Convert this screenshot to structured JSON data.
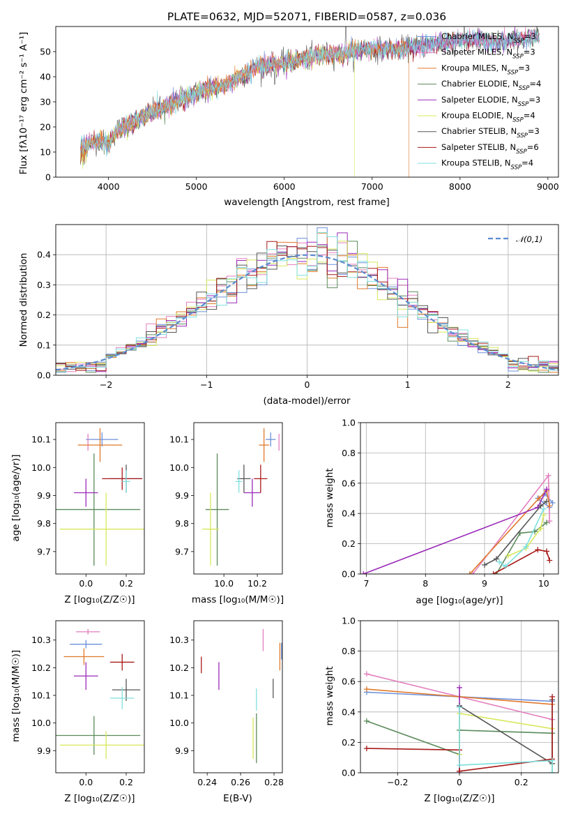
{
  "figure": {
    "title": "PLATE=0632, MJD=52071, FIBERID=0587, z=0.036"
  },
  "legend_entries": [
    {
      "name": "Chabrier MILES",
      "nssp": "3",
      "color": "#6b8fd9"
    },
    {
      "name": "Salpeter MILES",
      "nssp": "3",
      "color": "#e37fbf"
    },
    {
      "name": "Kroupa MILES",
      "nssp": "3",
      "color": "#e0792a"
    },
    {
      "name": "Chabrier ELODIE",
      "nssp": "4",
      "color": "#5a8a5a"
    },
    {
      "name": "Salpeter ELODIE",
      "nssp": "3",
      "color": "#9a2ab8"
    },
    {
      "name": "Kroupa ELODIE",
      "nssp": "4",
      "color": "#d7e85a"
    },
    {
      "name": "Chabrier STELIB",
      "nssp": "3",
      "color": "#555555"
    },
    {
      "name": "Salpeter STELIB",
      "nssp": "6",
      "color": "#a81818"
    },
    {
      "name": "Kroupa STELIB",
      "nssp": "4",
      "color": "#7fe0de"
    }
  ],
  "chart_data": [
    {
      "id": "spectrum",
      "type": "line",
      "title": "PLATE=0632, MJD=52071, FIBERID=0587, z=0.036",
      "xlabel": "wavelength [Angstrom, rest frame]",
      "ylabel": "Flux [fλ10⁻¹⁷ erg cm⁻² s⁻¹ A⁻¹]",
      "xlim": [
        3400,
        9120
      ],
      "ylim": [
        0,
        60
      ],
      "xticks": [
        4000,
        5000,
        6000,
        7000,
        8000,
        9000
      ],
      "yticks": [
        0,
        10,
        20,
        30,
        40,
        50
      ],
      "continuum": [
        [
          3680,
          12
        ],
        [
          3900,
          15
        ],
        [
          4000,
          13
        ],
        [
          4100,
          19
        ],
        [
          4300,
          22
        ],
        [
          4500,
          26
        ],
        [
          4700,
          29
        ],
        [
          4900,
          32
        ],
        [
          5100,
          35
        ],
        [
          5300,
          36
        ],
        [
          5500,
          40
        ],
        [
          5700,
          44
        ],
        [
          5900,
          45
        ],
        [
          6100,
          46
        ],
        [
          6300,
          48
        ],
        [
          6500,
          49
        ],
        [
          6700,
          49
        ],
        [
          6900,
          51
        ],
        [
          7100,
          51
        ],
        [
          7300,
          51
        ],
        [
          7500,
          52
        ],
        [
          7700,
          53
        ],
        [
          7900,
          54
        ],
        [
          8100,
          55
        ],
        [
          8300,
          54
        ],
        [
          8500,
          54
        ],
        [
          8700,
          55
        ],
        [
          8900,
          56
        ]
      ],
      "features": [
        {
          "series": "Kroupa ELODIE",
          "drop_at": 6800
        },
        {
          "series": "Kroupa MILES",
          "drop_at": 7420
        },
        {
          "series": "Chabrier STELIB",
          "spike_at": 6700,
          "spike_value": 60
        },
        {
          "series": "Chabrier STELIB",
          "dip_at": 5890,
          "dip_value": 37
        }
      ],
      "grid": false,
      "legend": "right"
    },
    {
      "id": "residuals",
      "type": "histogram",
      "xlabel": "(data-model)/error",
      "ylabel": "Normed distribution",
      "xlim": [
        -2.5,
        2.5
      ],
      "ylim": [
        0,
        0.5
      ],
      "xticks": [
        -2,
        -1,
        0,
        1,
        2
      ],
      "yticks": [
        0.0,
        0.1,
        0.2,
        0.3,
        0.4
      ],
      "bin_width": 0.1,
      "reference_label": "𝒩(0,1)",
      "grid": true,
      "legend": "upper right"
    },
    {
      "id": "age-vs-Z",
      "type": "errorbar",
      "xlabel": "Z [log₁₀(Z/Z☉)]",
      "ylabel": "age  [log₁₀(age/yr)]",
      "xlim": [
        -0.15,
        0.29
      ],
      "ylim": [
        9.62,
        10.16
      ],
      "xticks": [
        0.0,
        0.2
      ],
      "yticks": [
        9.7,
        9.8,
        9.9,
        10.0,
        10.1
      ],
      "points": [
        {
          "series": "Chabrier MILES",
          "x": 0.08,
          "xerr": 0.08,
          "y": 10.1,
          "yerr": 0.025
        },
        {
          "series": "Salpeter MILES",
          "x": 0.01,
          "xerr": 0.0,
          "y": 10.09,
          "yerr": 0.03
        },
        {
          "series": "Kroupa MILES",
          "x": 0.07,
          "xerr": 0.11,
          "y": 10.08,
          "yerr": 0.06
        },
        {
          "series": "Chabrier ELODIE",
          "x": 0.04,
          "xerr": 0.23,
          "y": 9.85,
          "yerr": 0.2
        },
        {
          "series": "Salpeter ELODIE",
          "x": 0.0,
          "xerr": 0.06,
          "y": 9.91,
          "yerr": 0.05
        },
        {
          "series": "Kroupa ELODIE",
          "x": 0.1,
          "xerr": 0.23,
          "y": 9.78,
          "yerr": 0.13
        },
        {
          "series": "Chabrier STELIB",
          "x": 0.2,
          "xerr": 0.08,
          "y": 9.96,
          "yerr": 0.05
        },
        {
          "series": "Salpeter STELIB",
          "x": 0.18,
          "xerr": 0.1,
          "y": 9.96,
          "yerr": 0.04
        },
        {
          "series": "Kroupa STELIB",
          "x": 0.2,
          "xerr": 0.02,
          "y": 9.95,
          "yerr": 0.04
        }
      ]
    },
    {
      "id": "age-vs-mass",
      "type": "errorbar",
      "xlabel": "mass [log₁₀(M/M☉)]",
      "ylabel": "",
      "xlim": [
        9.82,
        10.35
      ],
      "ylim": [
        9.62,
        10.16
      ],
      "xticks": [
        10.0,
        10.2
      ],
      "yticks": [
        9.7,
        9.8,
        9.9,
        10.0,
        10.1
      ],
      "points": [
        {
          "series": "Chabrier MILES",
          "x": 10.28,
          "xerr": 0.03,
          "y": 10.1,
          "yerr": 0.025
        },
        {
          "series": "Salpeter MILES",
          "x": 10.33,
          "xerr": 0.0,
          "y": 10.09,
          "yerr": 0.03
        },
        {
          "series": "Kroupa MILES",
          "x": 10.24,
          "xerr": 0.03,
          "y": 10.08,
          "yerr": 0.06
        },
        {
          "series": "Chabrier ELODIE",
          "x": 9.96,
          "xerr": 0.07,
          "y": 9.85,
          "yerr": 0.2
        },
        {
          "series": "Salpeter ELODIE",
          "x": 10.17,
          "xerr": 0.05,
          "y": 9.91,
          "yerr": 0.05
        },
        {
          "series": "Kroupa ELODIE",
          "x": 9.92,
          "xerr": 0.05,
          "y": 9.78,
          "yerr": 0.13
        },
        {
          "series": "Chabrier STELIB",
          "x": 10.12,
          "xerr": 0.04,
          "y": 9.96,
          "yerr": 0.05
        },
        {
          "series": "Salpeter STELIB",
          "x": 10.22,
          "xerr": 0.04,
          "y": 9.96,
          "yerr": 0.05
        },
        {
          "series": "Kroupa STELIB",
          "x": 10.09,
          "xerr": 0.02,
          "y": 9.95,
          "yerr": 0.04
        }
      ]
    },
    {
      "id": "weight-vs-age",
      "type": "line",
      "xlabel": "age  [log₁₀(age/yr)]",
      "ylabel": "mass weight",
      "xlim": [
        6.9,
        10.25
      ],
      "ylim": [
        0,
        1
      ],
      "xticks": [
        7,
        8,
        9,
        10
      ],
      "yticks": [
        0.0,
        0.2,
        0.4,
        0.6,
        0.8,
        1.0
      ],
      "grid": true,
      "lines": [
        {
          "series": "Chabrier MILES",
          "x": [
            10.1,
            9.9,
            10.02,
            10.15
          ],
          "y": [
            0.44,
            0.5,
            0.53,
            0.47
          ]
        },
        {
          "series": "Salpeter MILES",
          "x": [
            8.8,
            10.08,
            10.1
          ],
          "y": [
            0.0,
            0.65,
            0.35
          ]
        },
        {
          "series": "Kroupa MILES",
          "x": [
            8.75,
            9.92,
            10.05,
            10.1
          ],
          "y": [
            0.0,
            0.5,
            0.55,
            0.45
          ]
        },
        {
          "series": "Chabrier ELODIE",
          "x": [
            9.2,
            9.6,
            9.85,
            10.05
          ],
          "y": [
            0.0,
            0.27,
            0.28,
            0.34
          ]
        },
        {
          "series": "Salpeter ELODIE",
          "x": [
            6.95,
            9.9,
            10.05
          ],
          "y": [
            0.0,
            0.44,
            0.56
          ]
        },
        {
          "series": "Kroupa ELODIE",
          "x": [
            9.4,
            9.7,
            9.95,
            10.0
          ],
          "y": [
            0.12,
            0.17,
            0.3,
            0.39
          ]
        },
        {
          "series": "Chabrier STELIB",
          "x": [
            9.0,
            9.2,
            9.95,
            10.05
          ],
          "y": [
            0.06,
            0.1,
            0.45,
            0.48
          ]
        },
        {
          "series": "Salpeter STELIB",
          "x": [
            9.15,
            9.9,
            10.05,
            10.1
          ],
          "y": [
            0.0,
            0.16,
            0.15,
            0.09
          ]
        },
        {
          "series": "Kroupa STELIB",
          "x": [
            9.25,
            9.35,
            9.7,
            10.0
          ],
          "y": [
            0.08,
            0.05,
            0.18,
            0.43
          ]
        }
      ]
    },
    {
      "id": "mass-vs-Z",
      "type": "errorbar",
      "xlabel": "Z [log₁₀(Z/Z☉)]",
      "ylabel": "mass [log₁₀(M/M☉)]",
      "xlim": [
        -0.15,
        0.29
      ],
      "ylim": [
        9.82,
        10.37
      ],
      "xticks": [
        0.0,
        0.2
      ],
      "yticks": [
        9.9,
        10.0,
        10.1,
        10.2,
        10.3
      ],
      "points": [
        {
          "series": "Chabrier MILES",
          "x": 0.0,
          "xerr": 0.08,
          "y": 10.285,
          "yerr": 0.015
        },
        {
          "series": "Salpeter MILES",
          "x": 0.01,
          "xerr": 0.06,
          "y": 10.33,
          "yerr": 0.01
        },
        {
          "series": "Kroupa MILES",
          "x": -0.01,
          "xerr": 0.1,
          "y": 10.24,
          "yerr": 0.03
        },
        {
          "series": "Chabrier ELODIE",
          "x": 0.04,
          "xerr": 0.23,
          "y": 9.955,
          "yerr": 0.07
        },
        {
          "series": "Salpeter ELODIE",
          "x": 0.0,
          "xerr": 0.06,
          "y": 10.17,
          "yerr": 0.05
        },
        {
          "series": "Kroupa ELODIE",
          "x": 0.1,
          "xerr": 0.23,
          "y": 9.92,
          "yerr": 0.05
        },
        {
          "series": "Chabrier STELIB",
          "x": 0.2,
          "xerr": 0.07,
          "y": 10.12,
          "yerr": 0.04
        },
        {
          "series": "Salpeter STELIB",
          "x": 0.18,
          "xerr": 0.06,
          "y": 10.22,
          "yerr": 0.03
        },
        {
          "series": "Kroupa STELIB",
          "x": 0.18,
          "xerr": 0.06,
          "y": 10.09,
          "yerr": 0.04
        }
      ]
    },
    {
      "id": "mass-vs-EBV",
      "type": "errorbar",
      "xlabel": "E(B-V)",
      "ylabel": "",
      "xlim": [
        0.232,
        0.285
      ],
      "ylim": [
        9.82,
        10.37
      ],
      "xticks": [
        0.24,
        0.26,
        0.28
      ],
      "yticks": [
        9.9,
        10.0,
        10.1,
        10.2,
        10.3
      ],
      "points": [
        {
          "series": "Chabrier MILES",
          "x": 0.2845,
          "xerr": 0.0,
          "y": 10.26,
          "yerr": 0.03
        },
        {
          "series": "Salpeter MILES",
          "x": 0.2735,
          "xerr": 0.0,
          "y": 10.3,
          "yerr": 0.04
        },
        {
          "series": "Kroupa MILES",
          "x": 0.2835,
          "xerr": 0.0,
          "y": 10.24,
          "yerr": 0.05
        },
        {
          "series": "Chabrier ELODIE",
          "x": 0.2695,
          "xerr": 0.0,
          "y": 9.945,
          "yerr": 0.09
        },
        {
          "series": "Salpeter ELODIE",
          "x": 0.247,
          "xerr": 0.0,
          "y": 10.17,
          "yerr": 0.05
        },
        {
          "series": "Kroupa ELODIE",
          "x": 0.2675,
          "xerr": 0.0,
          "y": 9.945,
          "yerr": 0.075
        },
        {
          "series": "Chabrier STELIB",
          "x": 0.2795,
          "xerr": 0.0,
          "y": 10.125,
          "yerr": 0.035
        },
        {
          "series": "Salpeter STELIB",
          "x": 0.2365,
          "xerr": 0.0,
          "y": 10.21,
          "yerr": 0.03
        },
        {
          "series": "Kroupa STELIB",
          "x": 0.2695,
          "xerr": 0.0,
          "y": 10.085,
          "yerr": 0.04
        }
      ]
    },
    {
      "id": "weight-vs-Z",
      "type": "line",
      "xlabel": "Z [log₁₀(Z/Z☉)]",
      "ylabel": "mass weight",
      "xlim": [
        -0.32,
        0.32
      ],
      "ylim": [
        0,
        1
      ],
      "xticks": [
        -0.2,
        0.0,
        0.2
      ],
      "yticks": [
        0.0,
        0.2,
        0.4,
        0.6,
        0.8,
        1.0
      ],
      "grid": true,
      "lines": [
        {
          "series": "Chabrier MILES",
          "x": [
            -0.3,
            0.0,
            0.3
          ],
          "y": [
            0.53,
            0.5,
            0.47
          ]
        },
        {
          "series": "Salpeter MILES",
          "x": [
            -0.3,
            0.0,
            0.3
          ],
          "y": [
            0.65,
            0.5,
            0.35
          ]
        },
        {
          "series": "Kroupa MILES",
          "x": [
            -0.3,
            0.0,
            0.3
          ],
          "y": [
            0.55,
            0.5,
            0.45
          ]
        },
        {
          "series": "Chabrier ELODIE",
          "x": [
            -0.3,
            0.0,
            0.0,
            0.3,
            0.3
          ],
          "y": [
            0.34,
            0.12,
            0.28,
            0.26,
            0.0
          ]
        },
        {
          "series": "Salpeter ELODIE",
          "x": [
            0.0,
            0.0,
            0.0
          ],
          "y": [
            0.56,
            0.44,
            0.0
          ]
        },
        {
          "series": "Kroupa ELODIE",
          "x": [
            0.0,
            0.0,
            0.3
          ],
          "y": [
            0.12,
            0.39,
            0.29
          ]
        },
        {
          "series": "Chabrier STELIB",
          "x": [
            0.0,
            0.3,
            0.3
          ],
          "y": [
            0.44,
            0.06,
            0.48
          ]
        },
        {
          "series": "Salpeter STELIB",
          "x": [
            -0.3,
            0.0,
            0.0,
            0.3,
            0.3
          ],
          "y": [
            0.16,
            0.15,
            0.01,
            0.09,
            0.5
          ]
        },
        {
          "series": "Kroupa STELIB",
          "x": [
            0.0,
            0.0,
            0.3,
            0.3
          ],
          "y": [
            0.43,
            0.05,
            0.08,
            0.0
          ]
        }
      ]
    }
  ]
}
